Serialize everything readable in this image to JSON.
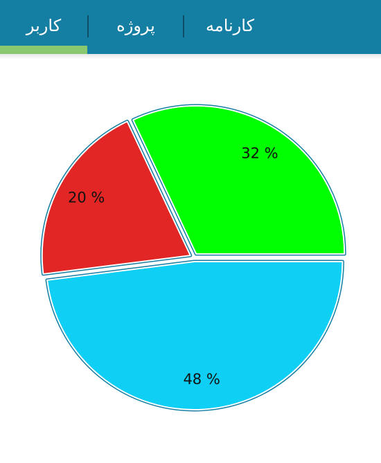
{
  "tabs": [
    {
      "label": "کاربر",
      "selected": true
    },
    {
      "label": "پروژه",
      "selected": false
    },
    {
      "label": "کارنامه",
      "selected": false
    }
  ],
  "colors": {
    "tabbar_background": "#157ea3",
    "selected_indicator": "#8ac870",
    "slice_border": "#157ea3"
  },
  "chart_data": {
    "type": "pie",
    "slices": [
      {
        "value": 32,
        "label": "32 %",
        "color": "#00ff00"
      },
      {
        "value": 20,
        "label": "20 %",
        "color": "#e22626"
      },
      {
        "value": 48,
        "label": "48 %",
        "color": "#10cff5"
      }
    ],
    "legend": "none"
  }
}
